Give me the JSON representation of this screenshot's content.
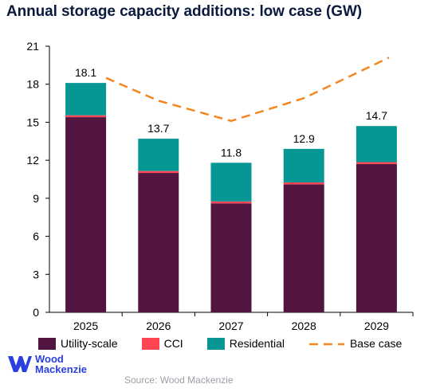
{
  "title": "Annual storage capacity additions: low case (GW)",
  "source": "Source: Wood Mackenzie",
  "logo": {
    "line1": "Wood",
    "line2": "Mackenzie"
  },
  "colors": {
    "utility": "#521540",
    "cci": "#ff4554",
    "residential": "#069693",
    "base_case": "#f5861f",
    "axis": "#000000",
    "logo": "#2a3fe0"
  },
  "chart_data": {
    "type": "bar",
    "stacked": true,
    "categories": [
      "2025",
      "2026",
      "2027",
      "2028",
      "2029"
    ],
    "ylim": [
      0,
      21
    ],
    "yticks": [
      0,
      3,
      6,
      9,
      12,
      15,
      18,
      21
    ],
    "grid": false,
    "legend_position": "bottom",
    "series": [
      {
        "name": "Utility-scale",
        "key": "utility",
        "values": [
          15.4,
          11.0,
          8.6,
          10.1,
          11.7
        ]
      },
      {
        "name": "CCI",
        "key": "cci",
        "values": [
          0.15,
          0.15,
          0.15,
          0.15,
          0.15
        ]
      },
      {
        "name": "Residential",
        "key": "residential",
        "values": [
          2.55,
          2.55,
          3.05,
          2.65,
          2.85
        ]
      }
    ],
    "totals": [
      "18.1",
      "13.7",
      "11.8",
      "12.9",
      "14.7"
    ],
    "line_series": {
      "name": "Base case",
      "style": "dashed",
      "values": [
        18.5,
        16.7,
        15.1,
        16.9,
        20.1
      ]
    }
  }
}
